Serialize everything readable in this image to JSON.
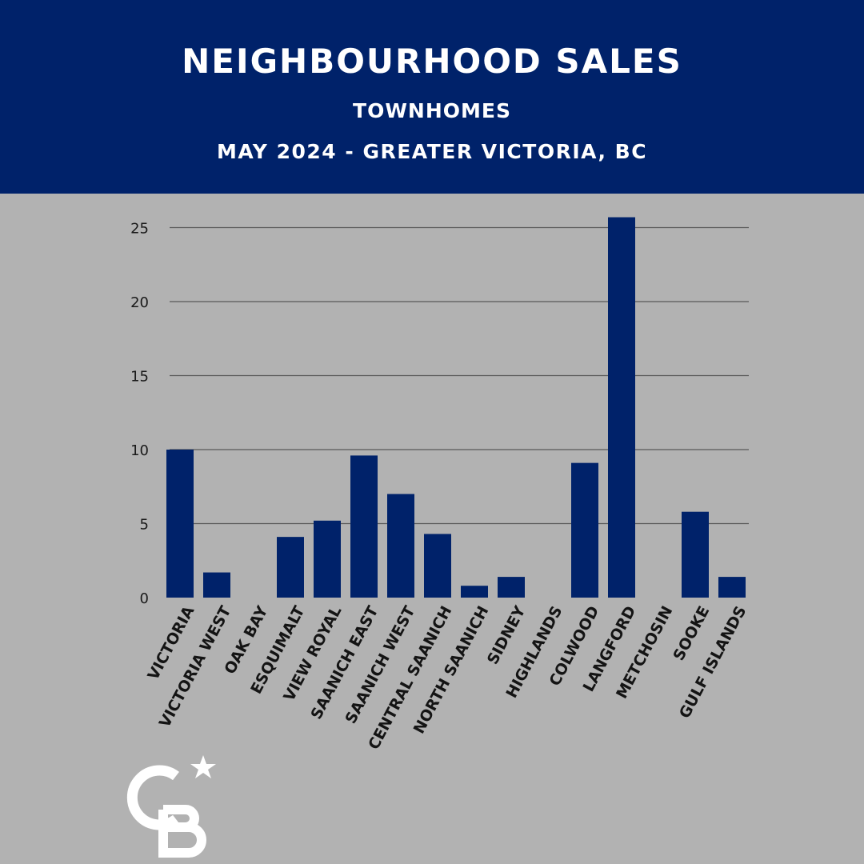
{
  "header": {
    "title": "NEIGHBOURHOOD SALES",
    "subtitle": "TOWNHOMES",
    "subtitle2": "MAY 2024 - GREATER VICTORIA, BC"
  },
  "colors": {
    "header_bg": "#00226a",
    "bar": "#00226a",
    "background": "#b2b2b2",
    "gridline": "#5a5a5a"
  },
  "logo": {
    "text": "CB",
    "icon": "coldwell-banker-logo-icon"
  },
  "chart_data": {
    "type": "bar",
    "categories": [
      "VICTORIA",
      "VICTORIA WEST",
      "OAK BAY",
      "ESQUIMALT",
      "VIEW ROYAL",
      "SAANICH EAST",
      "SAANICH WEST",
      "CENTRAL SAANICH",
      "NORTH SAANICH",
      "SIDNEY",
      "HIGHLANDS",
      "COLWOOD",
      "LANGFORD",
      "METCHOSIN",
      "SOOKE",
      "GULF ISLANDS"
    ],
    "values": [
      10,
      1.7,
      0,
      4.1,
      5.2,
      9.6,
      7,
      4.3,
      0.8,
      1.4,
      0,
      9.1,
      25.7,
      0,
      5.8,
      1.4
    ],
    "yticks": [
      0,
      5,
      10,
      15,
      20,
      25
    ],
    "ylim": [
      0,
      25.7
    ],
    "grid": true
  }
}
